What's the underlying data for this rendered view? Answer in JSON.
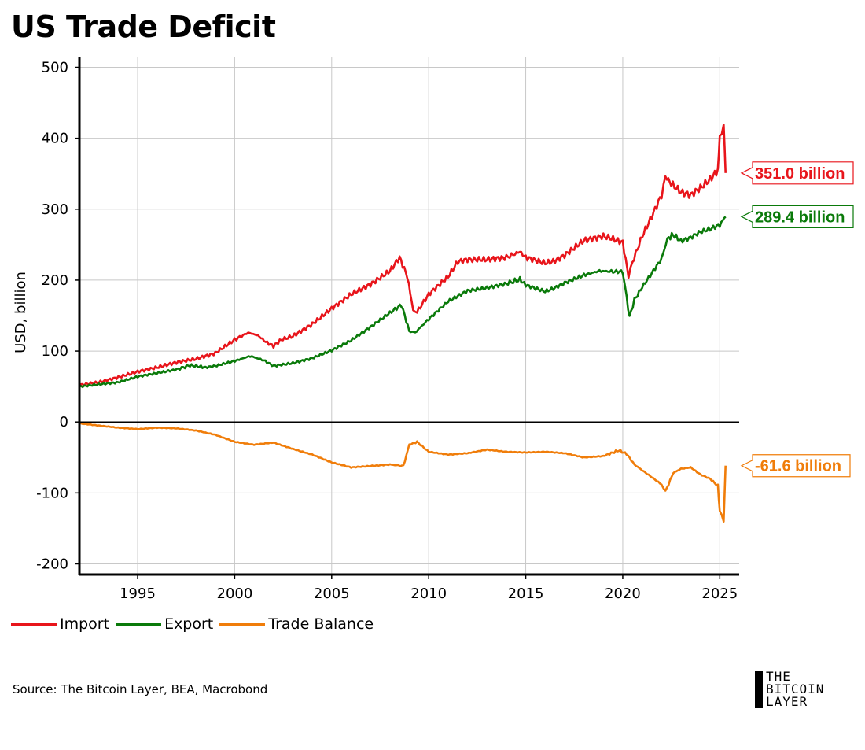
{
  "title": "US Trade Deficit",
  "source": "Source: The Bitcoin Layer, BEA, Macrobond",
  "brand": {
    "lines": [
      "THE",
      "BITCOIN",
      "LAYER"
    ]
  },
  "chart_data": {
    "type": "line",
    "title": "US Trade Deficit",
    "xlabel": "",
    "ylabel": "USD, billion",
    "xlim": [
      1992,
      2026
    ],
    "ylim": [
      -215,
      515
    ],
    "x_ticks": [
      1995,
      2000,
      2005,
      2010,
      2015,
      2020,
      2025
    ],
    "x_tick_labels": [
      "1995",
      "2000",
      "2005",
      "2010",
      "2015",
      "2020",
      "2025"
    ],
    "y_ticks": [
      -200,
      -100,
      0,
      100,
      200,
      300,
      400,
      500
    ],
    "y_tick_labels": [
      "-200",
      "-100",
      "0",
      "100",
      "200",
      "300",
      "400",
      "500"
    ],
    "grid": true,
    "legend_position": "bottom-left",
    "series": [
      {
        "name": "Import",
        "color": "#e8151b",
        "end_label": "351.0 billion",
        "points": [
          [
            1992.0,
            52
          ],
          [
            1993.0,
            56
          ],
          [
            1994.0,
            63
          ],
          [
            1995.0,
            71
          ],
          [
            1996.0,
            77
          ],
          [
            1997.0,
            84
          ],
          [
            1998.0,
            89
          ],
          [
            1999.0,
            97
          ],
          [
            2000.0,
            116
          ],
          [
            2000.7,
            126
          ],
          [
            2001.2,
            122
          ],
          [
            2001.6,
            113
          ],
          [
            2002.0,
            107
          ],
          [
            2002.4,
            116
          ],
          [
            2003.0,
            121
          ],
          [
            2004.0,
            138
          ],
          [
            2005.0,
            160
          ],
          [
            2006.0,
            180
          ],
          [
            2007.0,
            194
          ],
          [
            2008.0,
            213
          ],
          [
            2008.5,
            232
          ],
          [
            2008.9,
            205
          ],
          [
            2009.2,
            158
          ],
          [
            2009.4,
            155
          ],
          [
            2010.0,
            180
          ],
          [
            2011.0,
            205
          ],
          [
            2011.5,
            226
          ],
          [
            2012.0,
            229
          ],
          [
            2013.0,
            229
          ],
          [
            2014.0,
            232
          ],
          [
            2014.7,
            240
          ],
          [
            2015.0,
            232
          ],
          [
            2016.0,
            224
          ],
          [
            2016.5,
            227
          ],
          [
            2017.0,
            235
          ],
          [
            2018.0,
            256
          ],
          [
            2019.0,
            262
          ],
          [
            2019.5,
            258
          ],
          [
            2020.0,
            253
          ],
          [
            2020.3,
            205
          ],
          [
            2020.5,
            225
          ],
          [
            2021.0,
            262
          ],
          [
            2021.5,
            290
          ],
          [
            2022.0,
            320
          ],
          [
            2022.2,
            346
          ],
          [
            2022.5,
            336
          ],
          [
            2023.0,
            324
          ],
          [
            2023.5,
            320
          ],
          [
            2024.0,
            330
          ],
          [
            2024.5,
            342
          ],
          [
            2024.9,
            355
          ],
          [
            2025.0,
            400
          ],
          [
            2025.2,
            419
          ],
          [
            2025.3,
            351
          ]
        ]
      },
      {
        "name": "Export",
        "color": "#0a7a0a",
        "end_label": "289.4 billion",
        "points": [
          [
            1992.0,
            50
          ],
          [
            1993.0,
            53
          ],
          [
            1994.0,
            56
          ],
          [
            1995.0,
            64
          ],
          [
            1996.0,
            69
          ],
          [
            1997.0,
            74
          ],
          [
            1997.7,
            80
          ],
          [
            1998.5,
            77
          ],
          [
            1999.0,
            79
          ],
          [
            2000.0,
            86
          ],
          [
            2000.8,
            93
          ],
          [
            2001.5,
            87
          ],
          [
            2002.0,
            79
          ],
          [
            2003.0,
            83
          ],
          [
            2004.0,
            90
          ],
          [
            2005.0,
            101
          ],
          [
            2006.0,
            115
          ],
          [
            2007.0,
            134
          ],
          [
            2008.0,
            154
          ],
          [
            2008.6,
            165
          ],
          [
            2009.0,
            128
          ],
          [
            2009.3,
            126
          ],
          [
            2010.0,
            145
          ],
          [
            2011.0,
            170
          ],
          [
            2012.0,
            185
          ],
          [
            2013.0,
            189
          ],
          [
            2014.0,
            195
          ],
          [
            2014.7,
            201
          ],
          [
            2015.0,
            193
          ],
          [
            2016.0,
            184
          ],
          [
            2016.5,
            189
          ],
          [
            2017.0,
            196
          ],
          [
            2018.0,
            207
          ],
          [
            2018.8,
            213
          ],
          [
            2019.5,
            212
          ],
          [
            2020.0,
            212
          ],
          [
            2020.2,
            175
          ],
          [
            2020.35,
            148
          ],
          [
            2020.6,
            172
          ],
          [
            2021.0,
            190
          ],
          [
            2021.5,
            210
          ],
          [
            2022.0,
            230
          ],
          [
            2022.3,
            258
          ],
          [
            2022.6,
            264
          ],
          [
            2023.0,
            255
          ],
          [
            2023.5,
            260
          ],
          [
            2024.0,
            268
          ],
          [
            2024.5,
            272
          ],
          [
            2025.0,
            278
          ],
          [
            2025.3,
            289.4
          ]
        ]
      },
      {
        "name": "Trade Balance",
        "color": "#f07d0a",
        "end_label": "-61.6 billion",
        "points": [
          [
            1992.0,
            -2
          ],
          [
            1993.0,
            -5
          ],
          [
            1994.0,
            -8
          ],
          [
            1995.0,
            -10
          ],
          [
            1996.0,
            -8
          ],
          [
            1997.0,
            -9
          ],
          [
            1998.0,
            -12
          ],
          [
            1999.0,
            -18
          ],
          [
            2000.0,
            -28
          ],
          [
            2001.0,
            -32
          ],
          [
            2002.0,
            -29
          ],
          [
            2003.0,
            -38
          ],
          [
            2004.0,
            -46
          ],
          [
            2005.0,
            -57
          ],
          [
            2006.0,
            -64
          ],
          [
            2007.0,
            -62
          ],
          [
            2008.0,
            -60
          ],
          [
            2008.7,
            -62
          ],
          [
            2009.0,
            -32
          ],
          [
            2009.4,
            -28
          ],
          [
            2010.0,
            -42
          ],
          [
            2011.0,
            -46
          ],
          [
            2012.0,
            -44
          ],
          [
            2013.0,
            -39
          ],
          [
            2014.0,
            -42
          ],
          [
            2015.0,
            -43
          ],
          [
            2016.0,
            -42
          ],
          [
            2017.0,
            -44
          ],
          [
            2018.0,
            -50
          ],
          [
            2019.0,
            -48
          ],
          [
            2019.8,
            -40
          ],
          [
            2020.2,
            -45
          ],
          [
            2020.6,
            -60
          ],
          [
            2021.0,
            -68
          ],
          [
            2021.5,
            -78
          ],
          [
            2022.0,
            -88
          ],
          [
            2022.2,
            -98
          ],
          [
            2022.6,
            -72
          ],
          [
            2023.0,
            -66
          ],
          [
            2023.5,
            -64
          ],
          [
            2024.0,
            -74
          ],
          [
            2024.5,
            -80
          ],
          [
            2024.9,
            -90
          ],
          [
            2025.0,
            -125
          ],
          [
            2025.2,
            -138
          ],
          [
            2025.3,
            -61.6
          ]
        ]
      }
    ]
  }
}
